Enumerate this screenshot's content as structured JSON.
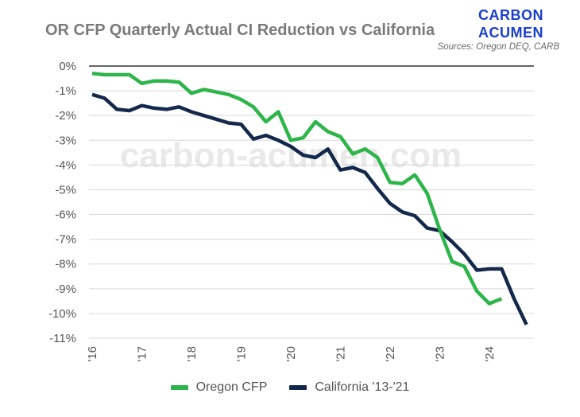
{
  "branding": {
    "line1": "CARBON",
    "line2": "ACUMEN",
    "sources": "Sources: Oregon DEQ, CARB",
    "watermark": "carbon-acumen.com"
  },
  "colors": {
    "oregon": "#2eb54a",
    "california": "#13284a",
    "grid": "#d9d9d9",
    "zero_line": "#333333"
  },
  "chart_data": {
    "type": "line",
    "title": "OR CFP Quarterly Actual CI Reduction vs California",
    "xlabel": "",
    "ylabel": "",
    "xlim": [
      2016,
      2024.9
    ],
    "ylim": [
      -11,
      0
    ],
    "y_ticks": [
      0,
      -1,
      -2,
      -3,
      -4,
      -5,
      -6,
      -7,
      -8,
      -9,
      -10,
      -11
    ],
    "y_tick_labels": [
      "0%",
      "-1%",
      "-2%",
      "-3%",
      "-4%",
      "-5%",
      "-6%",
      "-7%",
      "-8%",
      "-9%",
      "-10%",
      "-11%"
    ],
    "x_ticks": [
      2016,
      2017,
      2018,
      2019,
      2020,
      2021,
      2022,
      2023,
      2024
    ],
    "x_tick_labels": [
      "'16",
      "'17",
      "'18",
      "'19",
      "'20",
      "'21",
      "'22",
      "'23",
      "'24"
    ],
    "grid": "horizontal",
    "legend_position": "bottom",
    "series": [
      {
        "name": "Oregon CFP",
        "x": [
          2016.0,
          2016.25,
          2016.5,
          2016.75,
          2017.0,
          2017.25,
          2017.5,
          2017.75,
          2018.0,
          2018.25,
          2018.5,
          2018.75,
          2019.0,
          2019.25,
          2019.5,
          2019.75,
          2020.0,
          2020.25,
          2020.5,
          2020.75,
          2021.0,
          2021.25,
          2021.5,
          2021.75,
          2022.0,
          2022.25,
          2022.5,
          2022.75,
          2023.0,
          2023.25,
          2023.5,
          2023.75,
          2024.0,
          2024.25
        ],
        "values": [
          -0.3,
          -0.35,
          -0.35,
          -0.35,
          -0.7,
          -0.6,
          -0.6,
          -0.65,
          -1.1,
          -0.95,
          -1.05,
          -1.15,
          -1.35,
          -1.65,
          -2.25,
          -1.85,
          -3.0,
          -2.9,
          -2.25,
          -2.65,
          -2.85,
          -3.55,
          -3.35,
          -3.7,
          -4.7,
          -4.75,
          -4.4,
          -5.15,
          -6.6,
          -7.9,
          -8.1,
          -9.1,
          -9.6,
          -9.4
        ]
      },
      {
        "name": "California '13-'21",
        "x": [
          2016.0,
          2016.25,
          2016.5,
          2016.75,
          2017.0,
          2017.25,
          2017.5,
          2017.75,
          2018.0,
          2018.25,
          2018.5,
          2018.75,
          2019.0,
          2019.25,
          2019.5,
          2019.75,
          2020.0,
          2020.25,
          2020.5,
          2020.75,
          2021.0,
          2021.25,
          2021.5,
          2021.75,
          2022.0,
          2022.25,
          2022.5,
          2022.75,
          2023.0,
          2023.25,
          2023.5,
          2023.75,
          2024.0,
          2024.25,
          2024.5,
          2024.75
        ],
        "values": [
          -1.15,
          -1.3,
          -1.75,
          -1.8,
          -1.6,
          -1.7,
          -1.75,
          -1.65,
          -1.85,
          -2.0,
          -2.15,
          -2.3,
          -2.35,
          -2.95,
          -2.8,
          -3.0,
          -3.25,
          -3.6,
          -3.7,
          -3.35,
          -4.2,
          -4.1,
          -4.3,
          -4.95,
          -5.55,
          -5.9,
          -6.05,
          -6.55,
          -6.65,
          -7.1,
          -7.6,
          -8.25,
          -8.2,
          -8.2,
          -9.4,
          -10.45
        ]
      }
    ]
  }
}
